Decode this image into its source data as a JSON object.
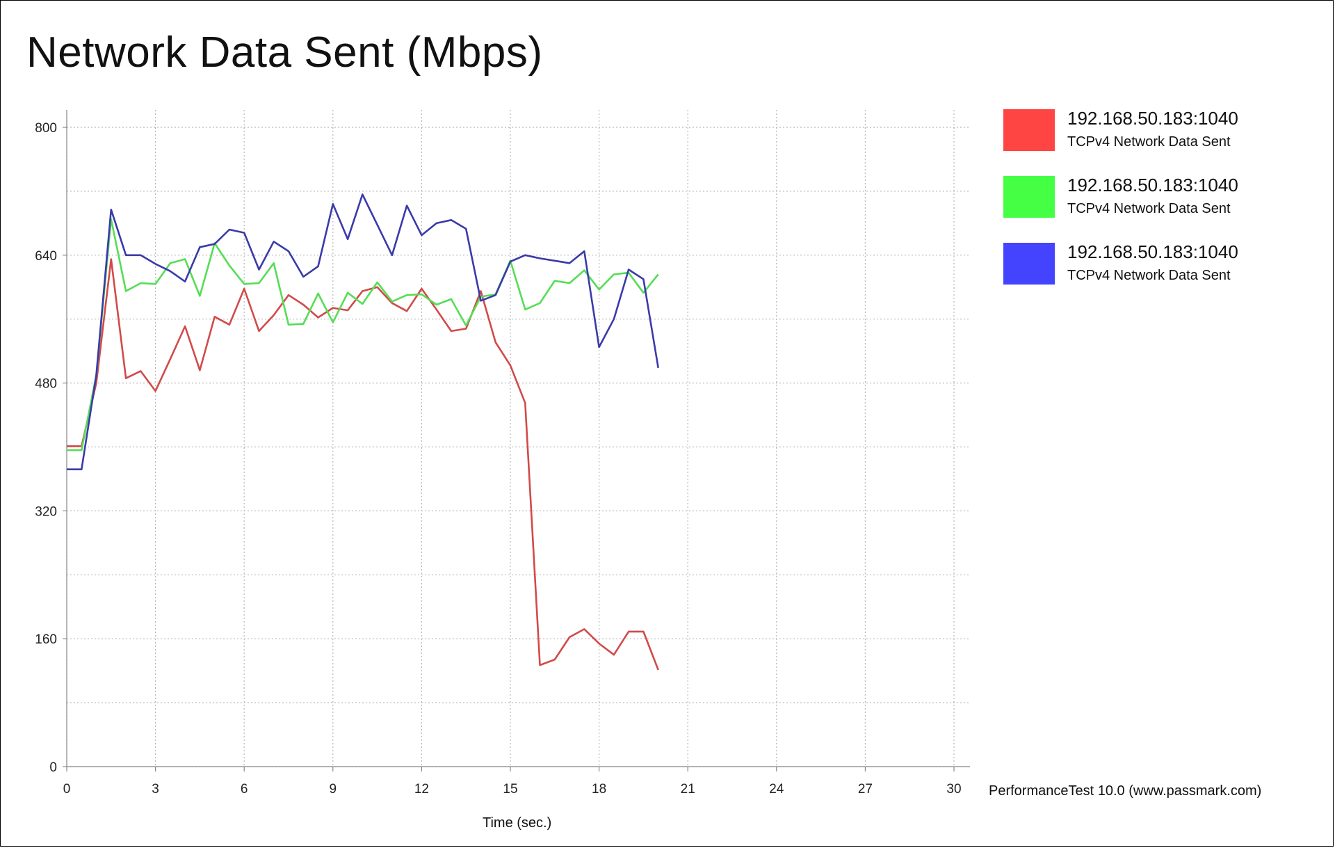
{
  "title": "Network Data Sent (Mbps)",
  "credit": "PerformanceTest 10.0 (www.passmark.com)",
  "colors": {
    "grid": "#b8b8b8",
    "axis": "#888888"
  },
  "legend": [
    {
      "label": "192.168.50.183:1040",
      "sublabel": "TCPv4 Network Data Sent",
      "color": "#ff4444"
    },
    {
      "label": "192.168.50.183:1040",
      "sublabel": "TCPv4 Network Data Sent",
      "color": "#44ff44"
    },
    {
      "label": "192.168.50.183:1040",
      "sublabel": "TCPv4 Network Data Sent",
      "color": "#4444ff"
    }
  ],
  "chart_data": {
    "type": "line",
    "title": "Network Data Sent (Mbps)",
    "xlabel": "Time (sec.)",
    "ylabel": "",
    "xlim": [
      0,
      30
    ],
    "ylim": [
      0,
      800
    ],
    "xticks": [
      0,
      3,
      6,
      9,
      12,
      15,
      18,
      21,
      24,
      27,
      30
    ],
    "yticks": [
      0,
      160,
      320,
      480,
      640,
      800
    ],
    "grid": true,
    "legend_position": "right",
    "series": [
      {
        "name": "192.168.50.183:1040 TCPv4 Network Data Sent",
        "color": "#d24a4a",
        "x": [
          0,
          0.5,
          1,
          1.5,
          2,
          2.5,
          3,
          3.5,
          4,
          4.5,
          5,
          5.5,
          6,
          6.5,
          7,
          7.5,
          8,
          8.5,
          9,
          9.5,
          10,
          10.5,
          11,
          11.5,
          12,
          12.5,
          13,
          13.5,
          14,
          14.5,
          15,
          15.5,
          16,
          16.5,
          17,
          17.5,
          18,
          18.5,
          19,
          19.5,
          20
        ],
        "y": [
          401,
          401,
          480,
          635,
          486,
          495,
          470,
          510,
          551,
          496,
          563,
          553,
          598,
          545,
          565,
          590,
          578,
          562,
          574,
          571,
          595,
          600,
          580,
          570,
          598,
          572,
          545,
          548,
          595,
          531,
          502,
          455,
          127,
          134,
          162,
          172,
          154,
          140,
          169,
          169,
          121
        ]
      },
      {
        "name": "192.168.50.183:1040 TCPv4 Network Data Sent",
        "color": "#55dd55",
        "x": [
          0,
          0.5,
          1,
          1.5,
          2,
          2.5,
          3,
          3.5,
          4,
          4.5,
          5,
          5.5,
          6,
          6.5,
          7,
          7.5,
          8,
          8.5,
          9,
          9.5,
          10,
          10.5,
          11,
          11.5,
          12,
          12.5,
          13,
          13.5,
          14,
          14.5,
          15,
          15.5,
          16,
          16.5,
          17,
          17.5,
          18,
          18.5,
          19,
          19.5,
          20
        ],
        "y": [
          396,
          396,
          490,
          685,
          595,
          605,
          604,
          630,
          635,
          589,
          655,
          627,
          604,
          605,
          630,
          553,
          554,
          592,
          556,
          593,
          579,
          606,
          582,
          590,
          591,
          578,
          585,
          552,
          588,
          591,
          633,
          572,
          580,
          608,
          605,
          621,
          597,
          616,
          618,
          593,
          616
        ]
      },
      {
        "name": "192.168.50.183:1040 TCPv4 Network Data Sent",
        "color": "#3a3aaa",
        "x": [
          0,
          0.5,
          1,
          1.5,
          2,
          2.5,
          3,
          3.5,
          4,
          4.5,
          5,
          5.5,
          6,
          6.5,
          7,
          7.5,
          8,
          8.5,
          9,
          9.5,
          10,
          10.5,
          11,
          11.5,
          12,
          12.5,
          13,
          13.5,
          14,
          14.5,
          15,
          15.5,
          16,
          16.5,
          17,
          17.5,
          18,
          18.5,
          19,
          19.5,
          20
        ],
        "y": [
          372,
          372,
          490,
          697,
          640,
          640,
          629,
          620,
          607,
          650,
          654,
          672,
          668,
          622,
          657,
          645,
          613,
          626,
          704,
          660,
          716,
          678,
          640,
          702,
          665,
          680,
          684,
          673,
          583,
          590,
          632,
          640,
          636,
          633,
          630,
          645,
          525,
          560,
          622,
          610,
          499
        ]
      }
    ]
  }
}
